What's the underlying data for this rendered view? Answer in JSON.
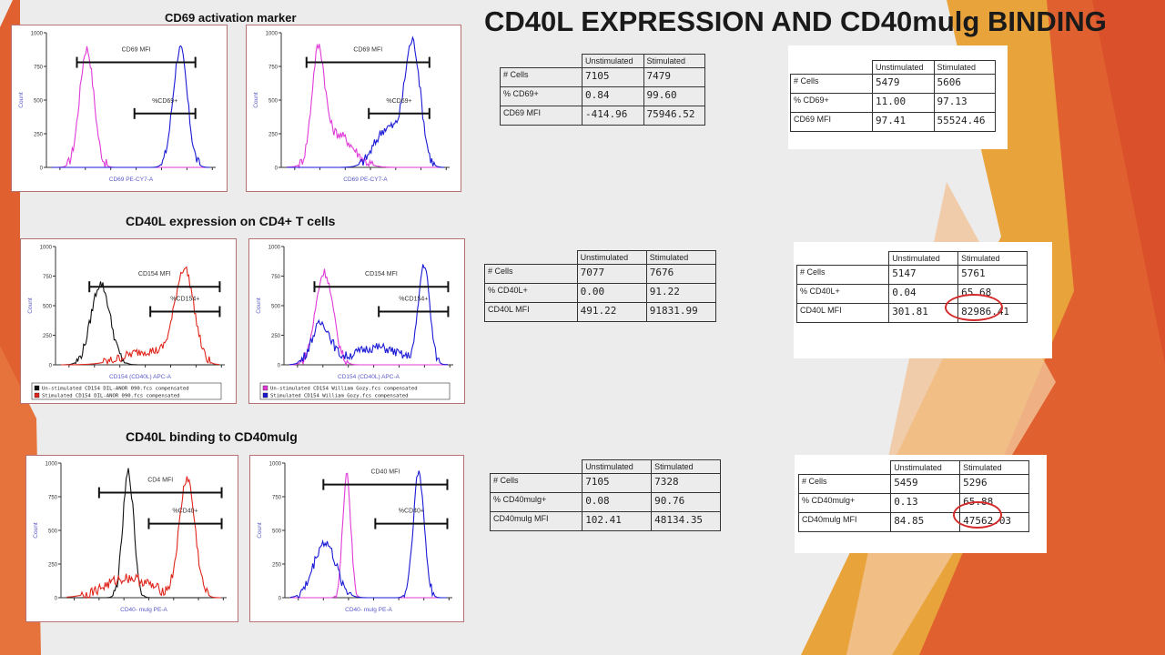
{
  "slide": {
    "title": "CD40L EXPRESSION AND CD40mulg BINDING"
  },
  "sections": {
    "cd69": "CD69 activation marker",
    "cd40l": "CD40L expression on CD4+ T cells",
    "binding": "CD40L binding to CD40mulg"
  },
  "plots": {
    "p1": {
      "marker1": "CD69 MFI",
      "marker2": "%CD69+",
      "xlabel": "CD69 PE-CY7-A",
      "ylabel": "Count"
    },
    "p2": {
      "marker1": "CD69 MFI",
      "marker2": "%CD69+",
      "xlabel": "CD69 PE-CY7-A",
      "ylabel": "Count"
    },
    "p3": {
      "marker1": "CD154 MFI",
      "marker2": "%CD154+",
      "xlabel": "CD154 (CD40L) APC-A",
      "ylabel": "Count",
      "legend": [
        "Un-stimulated CD154 DIL-ANOR 090.fcs compensated",
        "Stimulated CD154 DIL-ANOR 090.fcs compensated"
      ]
    },
    "p4": {
      "marker1": "CD154 MFI",
      "marker2": "%CD154+",
      "xlabel": "CD154 (CD40L) APC-A",
      "ylabel": "Count",
      "legend": [
        "Un-stimulated CD154 William Gozy.fcs compensated",
        "Stimulated CD154 William Gozy.fcs compensated"
      ]
    },
    "p5": {
      "marker1": "CD4 MFI",
      "marker2": "%CD40+",
      "xlabel": "CD40- mulg PE-A",
      "ylabel": "Count"
    },
    "p6": {
      "marker1": "CD40 MFI",
      "marker2": "%CD40+",
      "xlabel": "CD40- mulg PE-A",
      "ylabel": "Count"
    }
  },
  "axis": {
    "yticks": [
      "0",
      "250",
      "500",
      "750",
      "1000"
    ]
  },
  "tables": {
    "t1": {
      "headers": [
        "Unstimulated",
        "Stimulated"
      ],
      "rows": [
        {
          "label": "# Cells",
          "u": "7105",
          "s": "7479"
        },
        {
          "label": "% CD69+",
          "u": "0.84",
          "s": "99.60"
        },
        {
          "label": "CD69 MFI",
          "u": "-414.96",
          "s": "75946.52"
        }
      ]
    },
    "t2": {
      "headers": [
        "Unstimulated",
        "Stimulated"
      ],
      "rows": [
        {
          "label": "# Cells",
          "u": "5479",
          "s": "5606"
        },
        {
          "label": "% CD69+",
          "u": "11.00",
          "s": "97.13"
        },
        {
          "label": "CD69 MFI",
          "u": "97.41",
          "s": "55524.46"
        }
      ]
    },
    "t3": {
      "headers": [
        "Unstimulated",
        "Stimulated"
      ],
      "rows": [
        {
          "label": "# Cells",
          "u": "7077",
          "s": "7676"
        },
        {
          "label": "% CD40L+",
          "u": "0.00",
          "s": "91.22"
        },
        {
          "label": "CD40L MFI",
          "u": "491.22",
          "s": "91831.99"
        }
      ]
    },
    "t4": {
      "headers": [
        "Unstimulated",
        "Stimulated"
      ],
      "rows": [
        {
          "label": "# Cells",
          "u": "5147",
          "s": "5761"
        },
        {
          "label": "% CD40L+",
          "u": "0.04",
          "s": "65.68"
        },
        {
          "label": "CD40L MFI",
          "u": "301.81",
          "s": "82986.41"
        }
      ]
    },
    "t5": {
      "headers": [
        "Unstimulated",
        "Stimulated"
      ],
      "rows": [
        {
          "label": "# Cells",
          "u": "7105",
          "s": "7328"
        },
        {
          "label": "% CD40mulg+",
          "u": "0.08",
          "s": "90.76"
        },
        {
          "label": "CD40mulg MFI",
          "u": "102.41",
          "s": "48134.35"
        }
      ]
    },
    "t6": {
      "headers": [
        "Unstimulated",
        "Stimulated"
      ],
      "rows": [
        {
          "label": "# Cells",
          "u": "5459",
          "s": "5296"
        },
        {
          "label": "% CD40mulg+",
          "u": "0.13",
          "s": "65.88"
        },
        {
          "label": "CD40mulg MFI",
          "u": "84.85",
          "s": "47562.03"
        }
      ]
    }
  },
  "colors": {
    "magenta": "#e03ad8",
    "blue": "#1a1ad6",
    "black": "#111111",
    "red": "#e0261c",
    "highlight": "#d42a2a",
    "accent_orange": "#e0612f",
    "accent_gold": "#e9a33b"
  }
}
